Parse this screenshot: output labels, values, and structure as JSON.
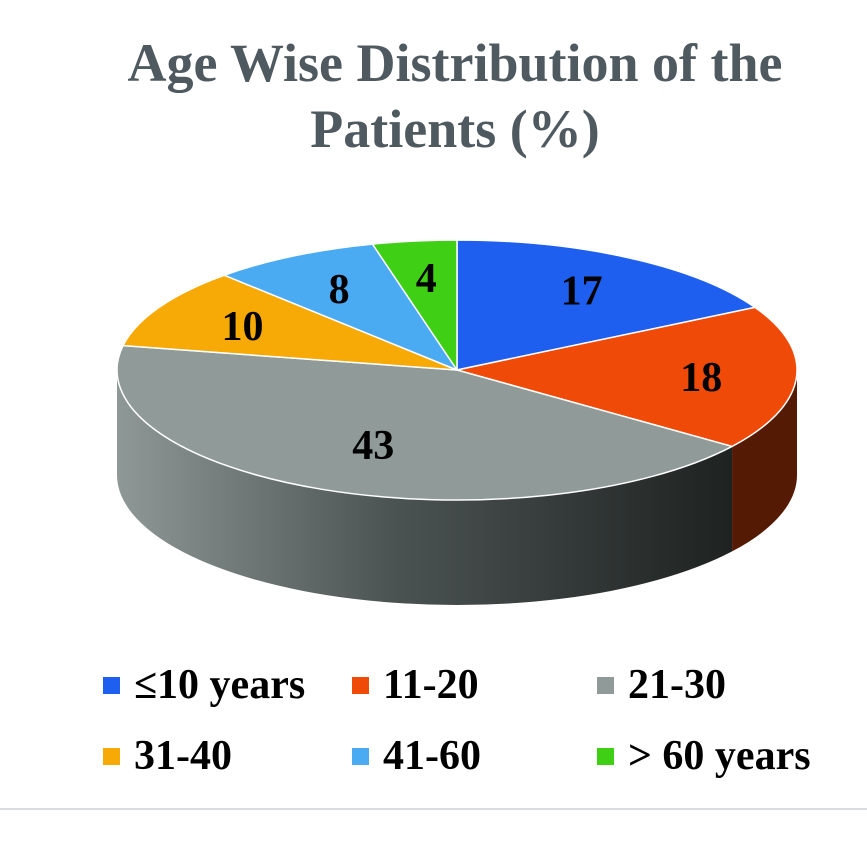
{
  "chart_data": {
    "type": "pie",
    "title_lines": [
      "Age Wise Distribution of the",
      "Patients (%)"
    ],
    "start_angle_deg": 0,
    "slices": [
      {
        "label": "≤10 years",
        "value": 17,
        "color": "#1f5ff0"
      },
      {
        "label": "11-20",
        "value": 18,
        "color": "#f04a08"
      },
      {
        "label": "21-30",
        "value": 43,
        "color": "#909b99"
      },
      {
        "label": "31-40",
        "value": 10,
        "color": "#f7aa06"
      },
      {
        "label": "41-60",
        "value": 8,
        "color": "#4aaaf2"
      },
      {
        "label": "> 60 years",
        "value": 4,
        "color": "#3fcf14"
      }
    ],
    "legend_position": "bottom"
  }
}
